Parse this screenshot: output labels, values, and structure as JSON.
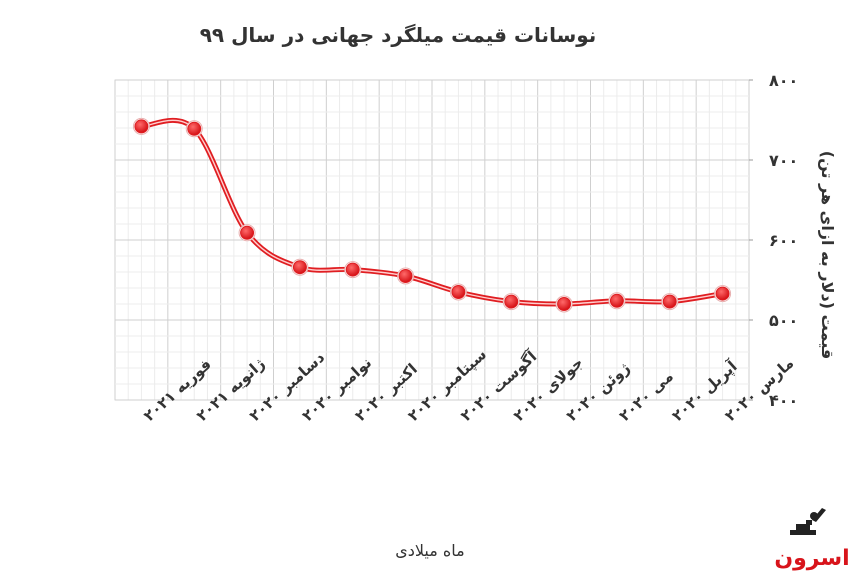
{
  "chart_data": {
    "type": "line",
    "title": "نوسانات قیمت میلگرد جهانی در سال ۹۹",
    "xlabel": "ماه میلادی",
    "ylabel": "قیمت (دلار به ازای هر تن)",
    "categories": [
      "فوریه ۲۰۲۱",
      "ژانویه ۲۰۲۱",
      "دسامبر ۲۰۲۰",
      "نوامبر ۲۰۲۰",
      "اکتبر ۲۰۲۰",
      "سپتامبر ۲۰۲۰",
      "آگوست ۲۰۲۰",
      "جولای ۲۰۲۰",
      "ژوئن ۲۰۲۰",
      "می ۲۰۲۰",
      "آپریل ۲۰۲۰",
      "مارس ۲۰۲۰"
    ],
    "series": [
      {
        "values": [
          742,
          739,
          609,
          566,
          563,
          555,
          535,
          523,
          520,
          524,
          523,
          533
        ],
        "color": "#e01e22"
      }
    ],
    "ylim": [
      400,
      800
    ],
    "yticks": [
      "۴۰۰",
      "۵۰۰",
      "۶۰۰",
      "۷۰۰",
      "۸۰۰"
    ],
    "ytick_values": [
      400,
      500,
      600,
      700,
      800
    ],
    "yaxis_side": "right",
    "grid": true,
    "legend": "none"
  },
  "logo": {
    "name": "Asroon logo",
    "icon": "blacksmith-icon"
  }
}
